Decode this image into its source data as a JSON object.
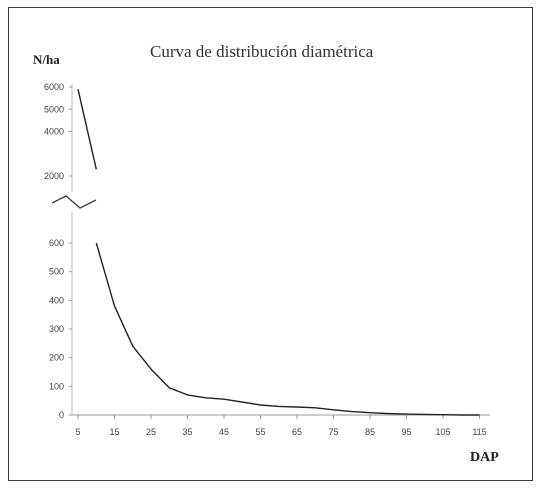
{
  "chart_data": {
    "type": "line",
    "title": "Curva de distribución diamétrica",
    "xlabel": "DAP",
    "ylabel": "N/ha",
    "x_ticks": [
      "5",
      "15",
      "25",
      "35",
      "45",
      "55",
      "65",
      "75",
      "85",
      "95",
      "105",
      "115"
    ],
    "y_ticks_lower": [
      "0",
      "100",
      "200",
      "300",
      "400",
      "500",
      "600"
    ],
    "y_ticks_upper": [
      "2000",
      "4000",
      "5000",
      "6000"
    ],
    "axis_break": true,
    "grid": false,
    "series": [
      {
        "x": [
          5,
          10
        ],
        "y": [
          5900,
          2300
        ],
        "segment": "upper"
      },
      {
        "x": [
          10,
          15,
          20,
          25,
          30,
          35,
          40,
          45,
          50,
          55,
          60,
          65,
          70,
          75,
          80,
          85,
          90,
          95,
          100,
          105,
          110,
          115
        ],
        "y": [
          600,
          380,
          240,
          160,
          95,
          70,
          60,
          55,
          45,
          35,
          30,
          28,
          25,
          18,
          12,
          8,
          5,
          3,
          2,
          1,
          0,
          0
        ],
        "segment": "lower"
      }
    ]
  }
}
